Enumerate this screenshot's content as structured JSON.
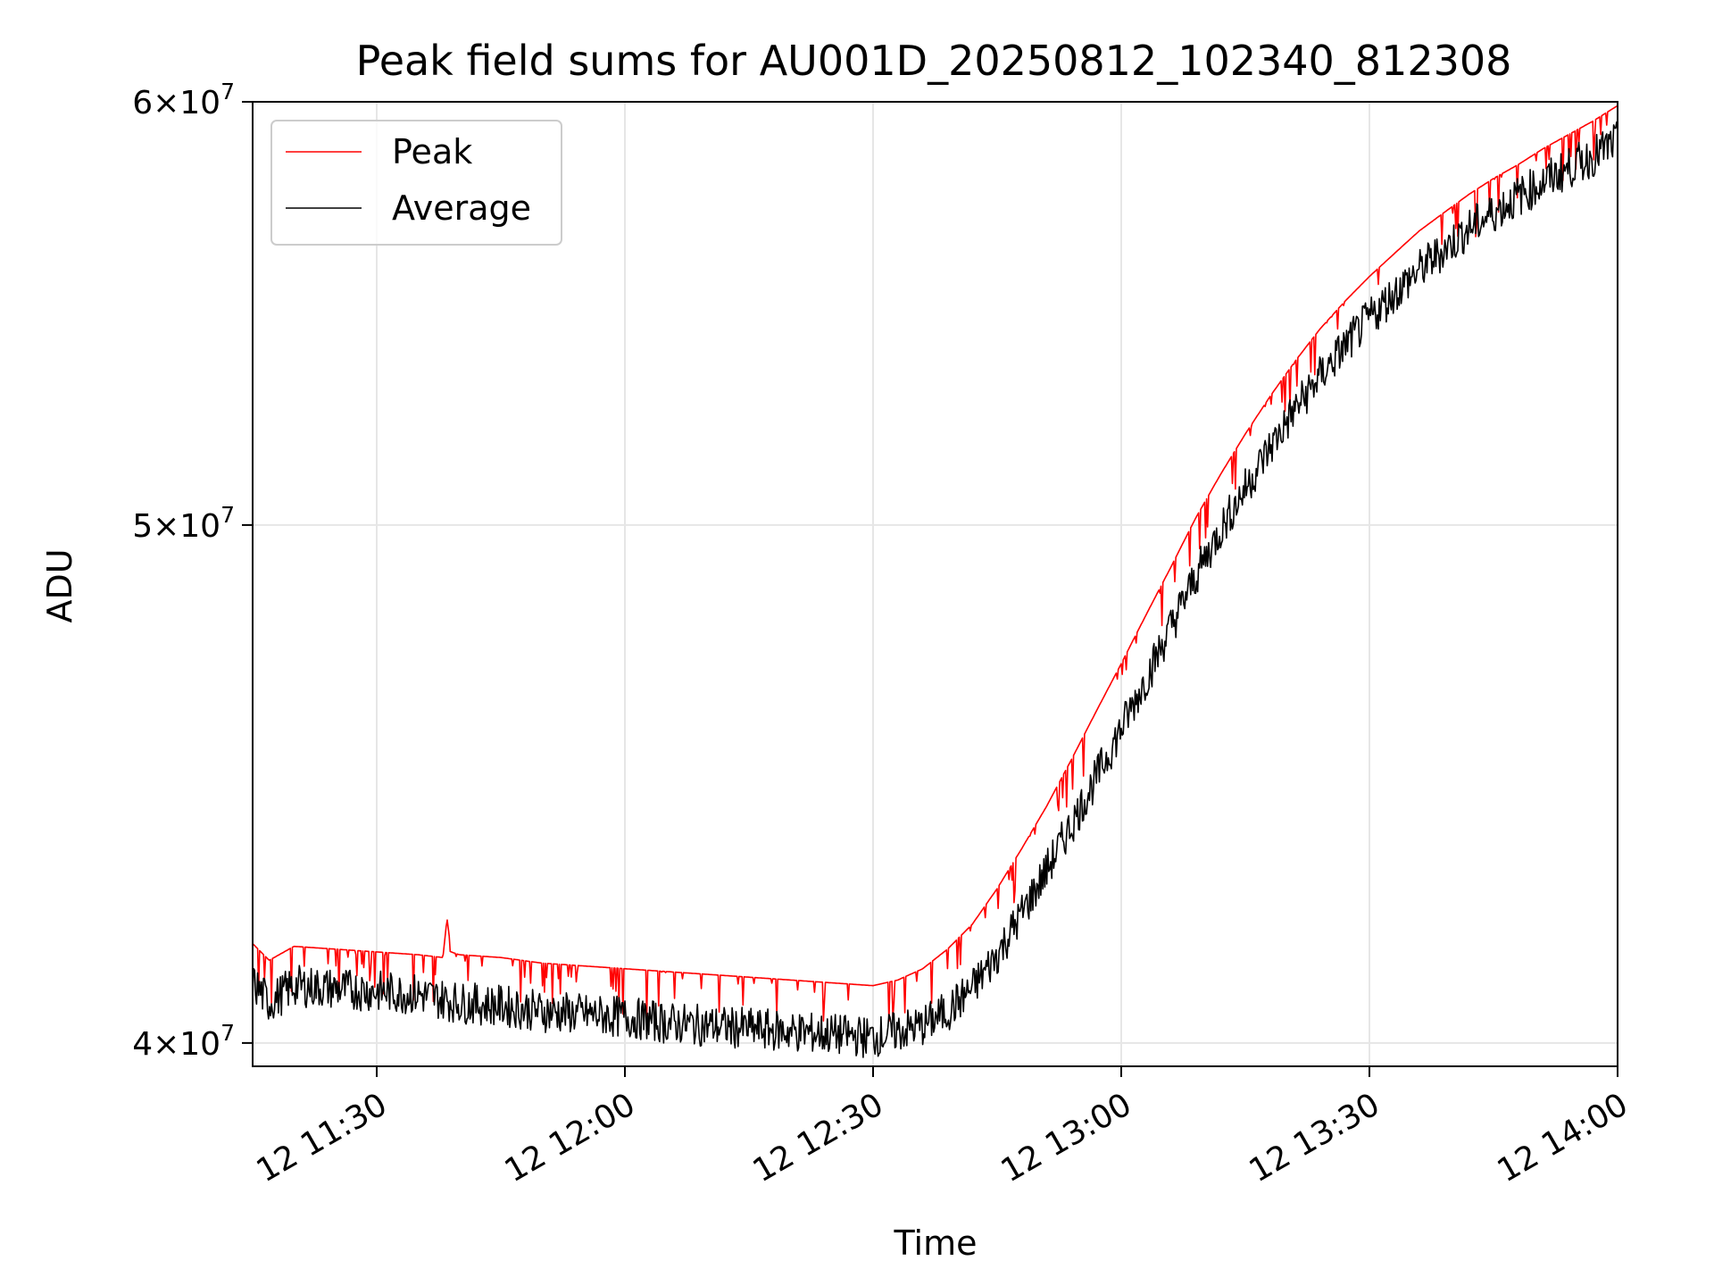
{
  "chart_data": {
    "type": "line",
    "title": "Peak field sums for AU001D_20250812_102340_812308",
    "xlabel": "Time",
    "ylabel": "ADU",
    "y_scale": "log",
    "xlim": [
      "2025-08-12 11:15",
      "2025-08-12 14:00"
    ],
    "ylim": [
      39600000,
      60000000
    ],
    "x_ticks": [
      "12 11:30",
      "12 12:00",
      "12 12:30",
      "12 13:00",
      "12 13:30",
      "12 14:00"
    ],
    "y_ticks": [
      {
        "value": 40000000,
        "mantissa": "4",
        "exp": "7"
      },
      {
        "value": 50000000,
        "mantissa": "5",
        "exp": "7"
      },
      {
        "value": 60000000,
        "mantissa": "6",
        "exp": "7"
      }
    ],
    "grid": true,
    "legend_position": "top-left",
    "colors": {
      "Peak": "#ff0000",
      "Average": "#000000"
    },
    "series": [
      {
        "name": "Peak",
        "x": [
          "11:15",
          "11:16",
          "11:17",
          "11:20",
          "11:25",
          "11:30",
          "11:35",
          "11:38",
          "11:38.5",
          "11:39",
          "11:40",
          "11:45",
          "11:50",
          "11:55",
          "12:00",
          "12:05",
          "12:10",
          "12:15",
          "12:20",
          "12:25",
          "12:30",
          "12:33",
          "12:36",
          "12:39",
          "12:42",
          "12:45",
          "12:48",
          "12:51",
          "12:54",
          "12:57",
          "13:00",
          "13:03",
          "13:06",
          "13:09",
          "13:12",
          "13:15",
          "13:18",
          "13:21",
          "13:24",
          "13:27",
          "13:30",
          "13:33",
          "13:36",
          "13:39",
          "13:42",
          "13:45",
          "13:48",
          "13:51",
          "13:54",
          "13:57",
          "14:00"
        ],
        "y": [
          41750000,
          41600000,
          41450000,
          41700000,
          41650000,
          41600000,
          41550000,
          41500000,
          42200000,
          41600000,
          41550000,
          41500000,
          41400000,
          41350000,
          41300000,
          41250000,
          41200000,
          41150000,
          41100000,
          41050000,
          41000000,
          41100000,
          41300000,
          41650000,
          42100000,
          42750000,
          43500000,
          44300000,
          45200000,
          46150000,
          47100000,
          48100000,
          49100000,
          50150000,
          51100000,
          52000000,
          52850000,
          53650000,
          54400000,
          55050000,
          55650000,
          56200000,
          56750000,
          57200000,
          57650000,
          58050000,
          58400000,
          58800000,
          59150000,
          59500000,
          59900000
        ]
      },
      {
        "name": "Average",
        "x": [
          "11:15",
          "11:17",
          "11:20",
          "11:25",
          "11:30",
          "11:35",
          "11:40",
          "11:45",
          "11:50",
          "11:55",
          "12:00",
          "12:05",
          "12:10",
          "12:15",
          "12:20",
          "12:25",
          "12:30",
          "12:33",
          "12:36",
          "12:39",
          "12:42",
          "12:45",
          "12:48",
          "12:51",
          "12:54",
          "12:57",
          "13:00",
          "13:03",
          "13:06",
          "13:09",
          "13:12",
          "13:15",
          "13:18",
          "13:21",
          "13:24",
          "13:27",
          "13:30",
          "13:33",
          "13:36",
          "13:39",
          "13:42",
          "13:45",
          "13:48",
          "13:51",
          "13:54",
          "13:57",
          "14:00"
        ],
        "y": [
          41050000,
          40700000,
          41000000,
          40950000,
          40900000,
          40850000,
          40700000,
          40650000,
          40550000,
          40500000,
          40450000,
          40350000,
          40300000,
          40250000,
          40200000,
          40150000,
          40100000,
          40200000,
          40300000,
          40550000,
          40950000,
          41550000,
          42300000,
          43100000,
          43950000,
          44850000,
          45800000,
          46800000,
          47850000,
          48900000,
          49900000,
          50800000,
          51700000,
          52550000,
          53300000,
          54000000,
          54650000,
          55250000,
          55800000,
          56300000,
          56800000,
          57200000,
          57600000,
          57950000,
          58300000,
          58600000,
          59000000
        ]
      }
    ]
  }
}
